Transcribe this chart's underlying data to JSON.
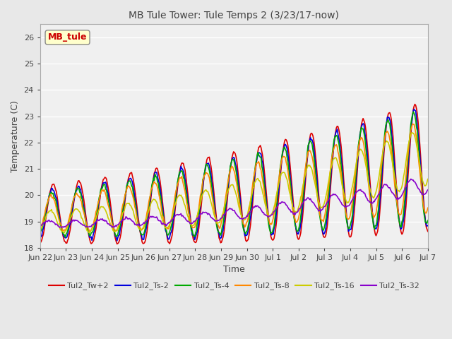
{
  "title": "MB Tule Tower: Tule Temps 2 (3/23/17-now)",
  "xlabel": "Time",
  "ylabel": "Temperature (C)",
  "ylim": [
    18.0,
    26.5
  ],
  "yticks": [
    18.0,
    19.0,
    20.0,
    21.0,
    22.0,
    23.0,
    24.0,
    25.0,
    26.0
  ],
  "x_tick_labels": [
    "Jun 22",
    "Jun 23",
    "Jun 24",
    "Jun 25",
    "Jun 26",
    "Jun 27",
    "Jun 28",
    "Jun 29",
    "Jun 30",
    "Jul 1",
    "Jul 2",
    "Jul 3",
    "Jul 4",
    "Jul 5",
    "Jul 6",
    "Jul 7"
  ],
  "line_colors": {
    "Tul2_Tw+2": "#dd0000",
    "Tul2_Ts-2": "#0000dd",
    "Tul2_Ts-4": "#00aa00",
    "Tul2_Ts-8": "#ff8800",
    "Tul2_Ts-16": "#cccc00",
    "Tul2_Ts-32": "#8800cc"
  },
  "legend_label": "MB_tule",
  "legend_color": "#cc0000",
  "bg_color": "#e8e8e8",
  "plot_bg": "#f0f0f0",
  "grid_color": "#ffffff",
  "n_days": 15,
  "n_points": 480
}
